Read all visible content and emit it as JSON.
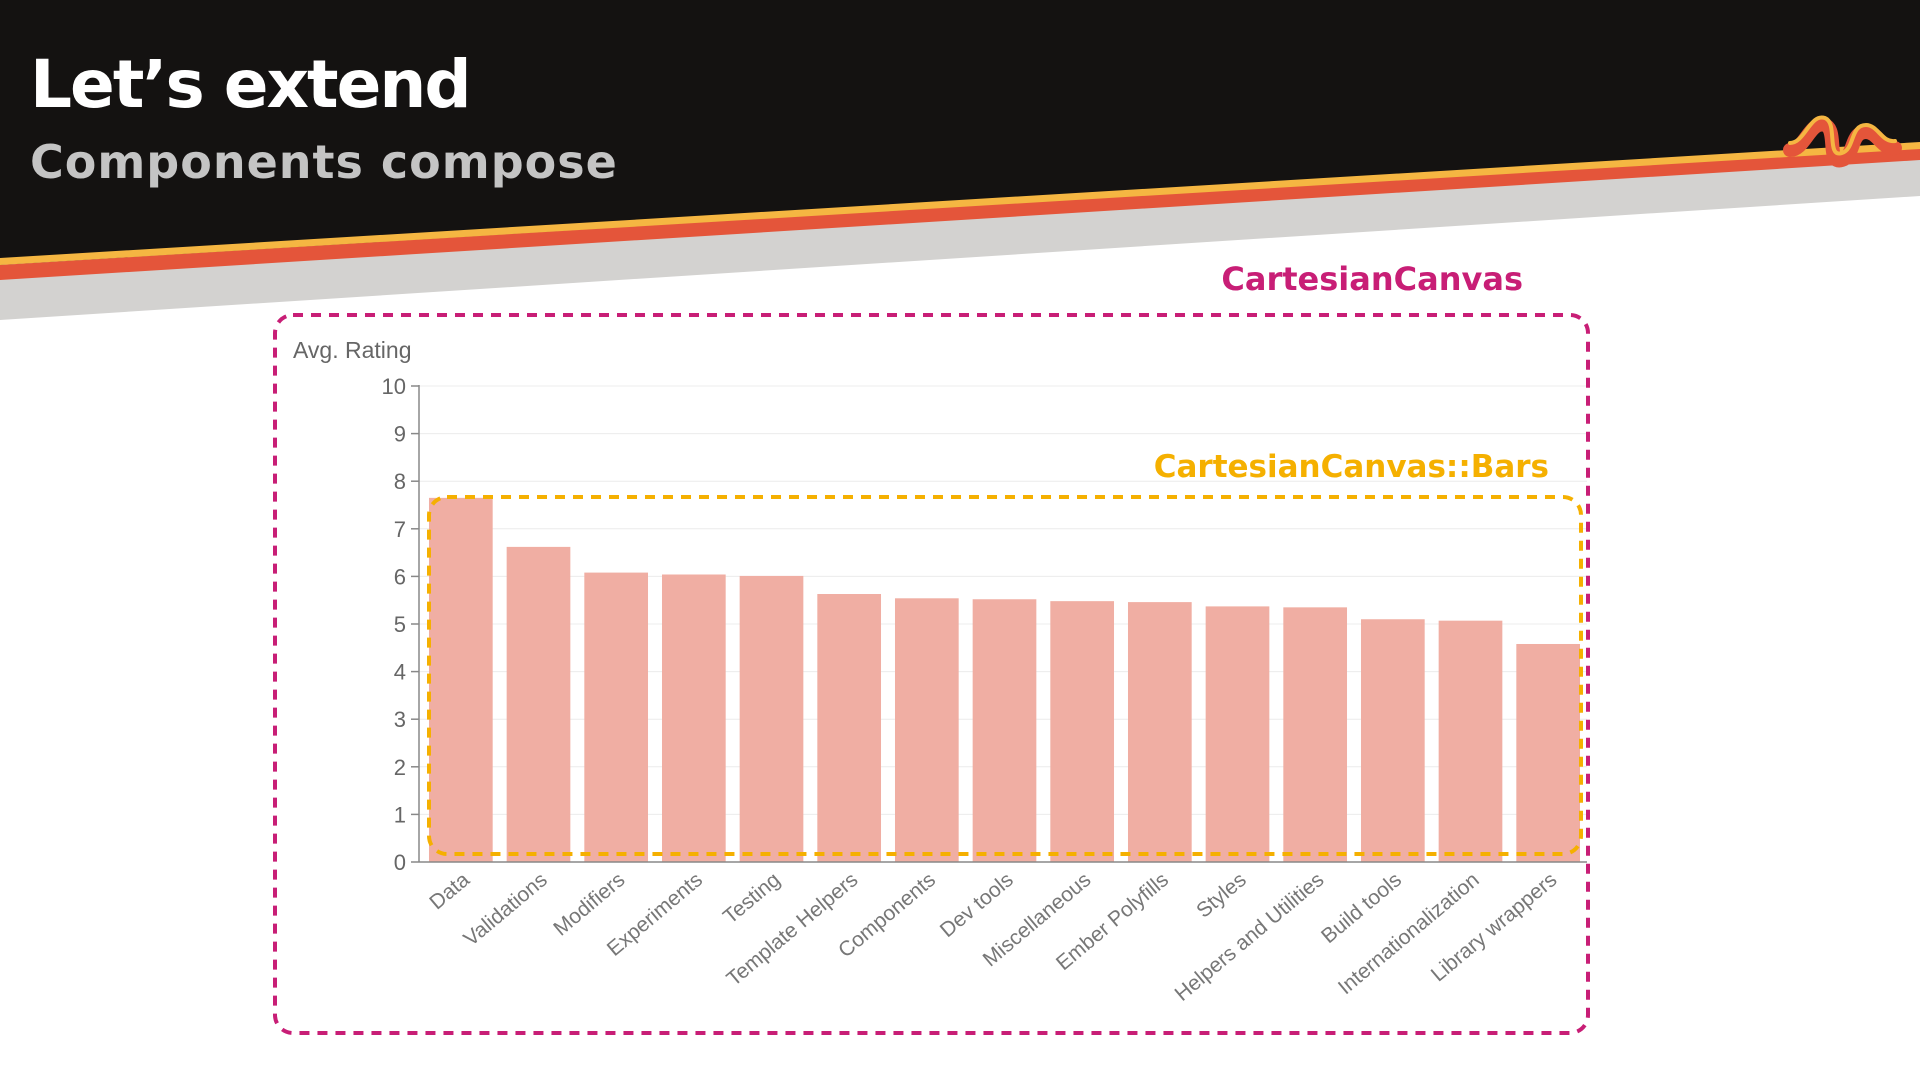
{
  "slide": {
    "title": "Let’s extend",
    "subtitle": "Components compose",
    "annotations": {
      "canvas_label": "CartesianCanvas",
      "bars_label": "CartesianCanvas::Bars"
    }
  },
  "colors": {
    "header_bg": "#141211",
    "stripe_yellow": "#f5b642",
    "stripe_red": "#e4553a",
    "stripe_gray": "#d3d2d0",
    "bar_fill": "#f0aea3",
    "canvas_outline": "#c81e76",
    "bars_outline": "#f5b000"
  },
  "chart_data": {
    "type": "bar",
    "ylabel": "Avg. Rating",
    "xlabel": "",
    "ylim": [
      0,
      10
    ],
    "yticks": [
      0,
      1,
      2,
      3,
      4,
      5,
      6,
      7,
      8,
      9,
      10
    ],
    "grid": true,
    "categories": [
      "Data",
      "Validations",
      "Modifiers",
      "Experiments",
      "Testing",
      "Template Helpers",
      "Components",
      "Dev tools",
      "Miscellaneous",
      "Ember Polyfills",
      "Styles",
      "Helpers and Utilities",
      "Build tools",
      "Internationalization",
      "Library wrappers"
    ],
    "values": [
      7.65,
      6.62,
      6.08,
      6.04,
      6.01,
      5.63,
      5.54,
      5.52,
      5.48,
      5.46,
      5.37,
      5.35,
      5.1,
      5.07,
      4.58
    ]
  }
}
